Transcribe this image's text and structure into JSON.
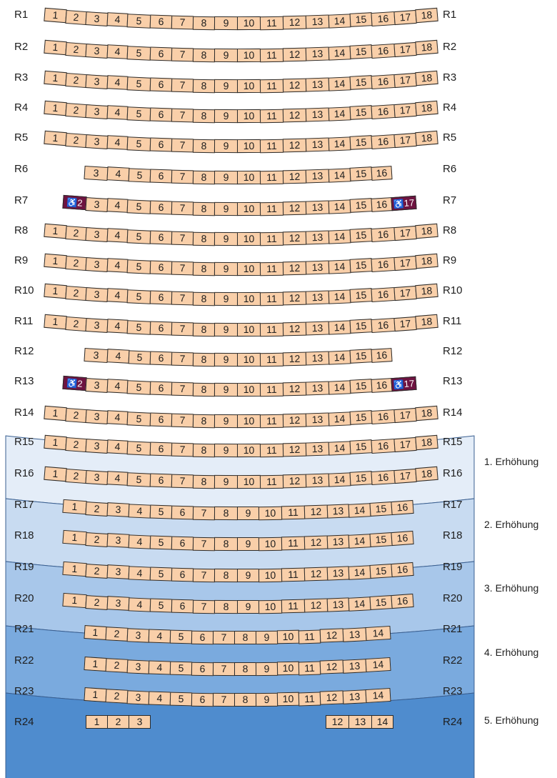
{
  "colors": {
    "seat_fill": "#f9cfa9",
    "seat_border": "#2b2b2b",
    "wheelchair_seat_fill": "#6e1340",
    "tier_1": "#e4edf8",
    "tier_2": "#c8dbf1",
    "tier_3": "#a8c7ea",
    "tier_4": "#7aaade",
    "tier_5": "#4f8cce",
    "tier_border": "#3a5f90"
  },
  "wheelchair_icon": "wheelchair-icon",
  "tiers": [
    {
      "label": "1. Erhöhung"
    },
    {
      "label": "2. Erhöhung"
    },
    {
      "label": "3. Erhöhung"
    },
    {
      "label": "4. Erhöhung"
    },
    {
      "label": "5. Erhöhung"
    }
  ],
  "rows": [
    {
      "label": "R1",
      "seats": [
        "1",
        "2",
        "3",
        "4",
        "5",
        "6",
        "7",
        "8",
        "9",
        "10",
        "11",
        "12",
        "13",
        "14",
        "15",
        "16",
        "17",
        "18"
      ]
    },
    {
      "label": "R2",
      "seats": [
        "1",
        "2",
        "3",
        "4",
        "5",
        "6",
        "7",
        "8",
        "9",
        "10",
        "11",
        "12",
        "13",
        "14",
        "15",
        "16",
        "17",
        "18"
      ]
    },
    {
      "label": "R3",
      "seats": [
        "1",
        "2",
        "3",
        "4",
        "5",
        "6",
        "7",
        "8",
        "9",
        "10",
        "11",
        "12",
        "13",
        "14",
        "15",
        "16",
        "17",
        "18"
      ]
    },
    {
      "label": "R4",
      "seats": [
        "1",
        "2",
        "3",
        "4",
        "5",
        "6",
        "7",
        "8",
        "9",
        "10",
        "11",
        "12",
        "13",
        "14",
        "15",
        "16",
        "17",
        "18"
      ]
    },
    {
      "label": "R5",
      "seats": [
        "1",
        "2",
        "3",
        "4",
        "5",
        "6",
        "7",
        "8",
        "9",
        "10",
        "11",
        "12",
        "13",
        "14",
        "15",
        "16",
        "17",
        "18"
      ]
    },
    {
      "label": "R6",
      "seats": [
        "3",
        "4",
        "5",
        "6",
        "7",
        "8",
        "9",
        "10",
        "11",
        "12",
        "13",
        "14",
        "15",
        "16"
      ]
    },
    {
      "label": "R7",
      "seats": [
        "2",
        "3",
        "4",
        "5",
        "6",
        "7",
        "8",
        "9",
        "10",
        "11",
        "12",
        "13",
        "14",
        "15",
        "16",
        "17"
      ],
      "wheelchair": [
        "2",
        "17"
      ]
    },
    {
      "label": "R8",
      "seats": [
        "1",
        "2",
        "3",
        "4",
        "5",
        "6",
        "7",
        "8",
        "9",
        "10",
        "11",
        "12",
        "13",
        "14",
        "15",
        "16",
        "17",
        "18"
      ]
    },
    {
      "label": "R9",
      "seats": [
        "1",
        "2",
        "3",
        "4",
        "5",
        "6",
        "7",
        "8",
        "9",
        "10",
        "11",
        "12",
        "13",
        "14",
        "15",
        "16",
        "17",
        "18"
      ]
    },
    {
      "label": "R10",
      "seats": [
        "1",
        "2",
        "3",
        "4",
        "5",
        "6",
        "7",
        "8",
        "9",
        "10",
        "11",
        "12",
        "13",
        "14",
        "15",
        "16",
        "17",
        "18"
      ]
    },
    {
      "label": "R11",
      "seats": [
        "1",
        "2",
        "3",
        "4",
        "5",
        "6",
        "7",
        "8",
        "9",
        "10",
        "11",
        "12",
        "13",
        "14",
        "15",
        "16",
        "17",
        "18"
      ]
    },
    {
      "label": "R12",
      "seats": [
        "3",
        "4",
        "5",
        "6",
        "7",
        "8",
        "9",
        "10",
        "11",
        "12",
        "13",
        "14",
        "15",
        "16"
      ]
    },
    {
      "label": "R13",
      "seats": [
        "2",
        "3",
        "4",
        "5",
        "6",
        "7",
        "8",
        "9",
        "10",
        "11",
        "12",
        "13",
        "14",
        "15",
        "16",
        "17"
      ],
      "wheelchair": [
        "2",
        "17"
      ]
    },
    {
      "label": "R14",
      "seats": [
        "1",
        "2",
        "3",
        "4",
        "5",
        "6",
        "7",
        "8",
        "9",
        "10",
        "11",
        "12",
        "13",
        "14",
        "15",
        "16",
        "17",
        "18"
      ]
    },
    {
      "label": "R15",
      "seats": [
        "1",
        "2",
        "3",
        "4",
        "5",
        "6",
        "7",
        "8",
        "9",
        "10",
        "11",
        "12",
        "13",
        "14",
        "15",
        "16",
        "17",
        "18"
      ]
    },
    {
      "label": "R16",
      "seats": [
        "1",
        "2",
        "3",
        "4",
        "5",
        "6",
        "7",
        "8",
        "9",
        "10",
        "11",
        "12",
        "13",
        "14",
        "15",
        "16",
        "17",
        "18"
      ]
    },
    {
      "label": "R17",
      "seats": [
        "1",
        "2",
        "3",
        "4",
        "5",
        "6",
        "7",
        "8",
        "9",
        "10",
        "11",
        "12",
        "13",
        "14",
        "15",
        "16"
      ]
    },
    {
      "label": "R18",
      "seats": [
        "1",
        "2",
        "3",
        "4",
        "5",
        "6",
        "7",
        "8",
        "9",
        "10",
        "11",
        "12",
        "13",
        "14",
        "15",
        "16"
      ]
    },
    {
      "label": "R19",
      "seats": [
        "1",
        "2",
        "3",
        "4",
        "5",
        "6",
        "7",
        "8",
        "9",
        "10",
        "11",
        "12",
        "13",
        "14",
        "15",
        "16"
      ]
    },
    {
      "label": "R20",
      "seats": [
        "1",
        "2",
        "3",
        "4",
        "5",
        "6",
        "7",
        "8",
        "9",
        "10",
        "11",
        "12",
        "13",
        "14",
        "15",
        "16"
      ]
    },
    {
      "label": "R21",
      "seats": [
        "1",
        "2",
        "3",
        "4",
        "5",
        "6",
        "7",
        "8",
        "9",
        "10",
        "11",
        "12",
        "13",
        "14"
      ]
    },
    {
      "label": "R22",
      "seats": [
        "1",
        "2",
        "3",
        "4",
        "5",
        "6",
        "7",
        "8",
        "9",
        "10",
        "11",
        "12",
        "13",
        "14"
      ]
    },
    {
      "label": "R23",
      "seats": [
        "1",
        "2",
        "3",
        "4",
        "5",
        "6",
        "7",
        "8",
        "9",
        "10",
        "11",
        "12",
        "13",
        "14"
      ]
    },
    {
      "label": "R24",
      "seats": [
        "1",
        "2",
        "3",
        "12",
        "13",
        "14"
      ]
    }
  ]
}
